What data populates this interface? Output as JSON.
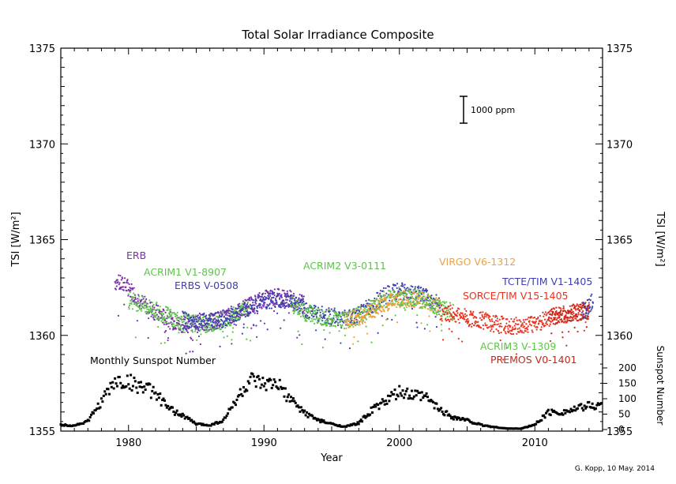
{
  "chart_data": {
    "type": "scatter",
    "title": "Total Solar Irradiance Composite",
    "xlabel": "Year",
    "ylabel_left": "TSI [W/m²]",
    "ylabel_right": "TSI [W/m²]",
    "ylabel_sunspot": "Sunspot Number",
    "xlim": [
      1975,
      2015
    ],
    "ylim": [
      1355,
      1375
    ],
    "x_ticks": [
      1980,
      1990,
      2000,
      2010
    ],
    "y_ticks": [
      1355,
      1360,
      1365,
      1370,
      1375
    ],
    "sunspot_axis": {
      "ticks": [
        0,
        50,
        100,
        150,
        200
      ],
      "range": [
        0,
        200
      ]
    },
    "scale_bar_label": "1000 ppm",
    "credit": "G. Kopp, 10 May. 2014",
    "grid": false,
    "series": [
      {
        "name": "ERB",
        "color": "#7b2fa8",
        "x": [
          1979.0,
          1980.0,
          1981.0,
          1982.0,
          1983.0,
          1984.0,
          1985.0,
          1986.0,
          1987.0,
          1988.0,
          1989.0,
          1990.0,
          1991.0,
          1992.0,
          1993.0
        ],
        "y": [
          1362.8,
          1362.5,
          1361.7,
          1361.2,
          1360.8,
          1360.6,
          1360.6,
          1360.7,
          1360.9,
          1361.2,
          1361.6,
          1361.9,
          1362.0,
          1361.9,
          1361.6
        ]
      },
      {
        "name": "ACRIM1 V1-8907",
        "color": "#5fc44a",
        "x": [
          1980.0,
          1981.0,
          1982.0,
          1983.0,
          1984.0,
          1985.0,
          1986.0,
          1987.0,
          1988.0,
          1989.0
        ],
        "y": [
          1361.9,
          1361.6,
          1361.3,
          1361.0,
          1360.7,
          1360.6,
          1360.6,
          1360.8,
          1361.1,
          1361.5
        ]
      },
      {
        "name": "ERBS V-0508",
        "color": "#3f3fb0",
        "x": [
          1984.0,
          1985.0,
          1986.0,
          1987.0,
          1988.0,
          1989.0,
          1990.0,
          1991.0,
          1992.0,
          1993.0,
          1994.0,
          1995.0,
          1996.0,
          1997.0,
          1998.0,
          1999.0,
          2000.0,
          2001.0,
          2002.0,
          2003.0
        ],
        "y": [
          1360.8,
          1360.7,
          1360.7,
          1360.8,
          1361.1,
          1361.5,
          1361.8,
          1361.9,
          1361.8,
          1361.4,
          1361.1,
          1361.0,
          1360.9,
          1361.1,
          1361.6,
          1362.1,
          1362.3,
          1362.2,
          1362.0,
          1361.6
        ]
      },
      {
        "name": "ACRIM2 V3-0111",
        "color": "#5fc44a",
        "x": [
          1992.0,
          1993.0,
          1994.0,
          1995.0,
          1996.0,
          1997.0,
          1998.0,
          1999.0,
          2000.0
        ],
        "y": [
          1361.6,
          1361.2,
          1361.0,
          1360.9,
          1360.8,
          1361.0,
          1361.5,
          1361.9,
          1362.1
        ]
      },
      {
        "name": "VIRGO V6-1312",
        "color": "#f2a03d",
        "x": [
          1996.0,
          1997.0,
          1998.0,
          1999.0,
          2000.0,
          2001.0,
          2002.0,
          2003.0
        ],
        "y": [
          1360.8,
          1360.9,
          1361.3,
          1361.7,
          1361.9,
          1361.9,
          1361.8,
          1361.4
        ]
      },
      {
        "name": "ACRIM3 V-1309",
        "color": "#5fc44a",
        "x": [
          2000.0,
          2001.0,
          2002.0,
          2003.0,
          2004.0
        ],
        "y": [
          1362.0,
          1362.0,
          1361.8,
          1361.4,
          1361.2
        ]
      },
      {
        "name": "SORCE/TIM V15-1405",
        "color": "#e8321e",
        "x": [
          2003.0,
          2004.0,
          2005.0,
          2006.0,
          2007.0,
          2008.0,
          2009.0,
          2010.0,
          2011.0,
          2012.0,
          2013.0,
          2014.0
        ],
        "y": [
          1361.2,
          1361.1,
          1360.9,
          1360.8,
          1360.6,
          1360.5,
          1360.5,
          1360.6,
          1360.9,
          1361.1,
          1361.2,
          1361.3
        ]
      },
      {
        "name": "PREMOS V0-1401",
        "color": "#c0281c",
        "x": [
          2011.0,
          2012.0,
          2013.0,
          2014.0
        ],
        "y": [
          1360.9,
          1361.1,
          1361.2,
          1361.3
        ]
      },
      {
        "name": "TCTE/TIM V1-1405",
        "color": "#3f3fb0",
        "x": [
          2013.5,
          2014.0,
          2014.3
        ],
        "y": [
          1361.3,
          1361.5,
          1361.8
        ]
      },
      {
        "name": "Monthly Sunspot Number",
        "color": "#000000",
        "axis": "sunspot",
        "x": [
          1975.0,
          1976.0,
          1977.0,
          1978.0,
          1979.0,
          1980.0,
          1981.0,
          1982.0,
          1983.0,
          1984.0,
          1985.0,
          1986.0,
          1987.0,
          1988.0,
          1989.0,
          1990.0,
          1991.0,
          1992.0,
          1993.0,
          1994.0,
          1995.0,
          1996.0,
          1997.0,
          1998.0,
          1999.0,
          2000.0,
          2001.0,
          2002.0,
          2003.0,
          2004.0,
          2005.0,
          2006.0,
          2007.0,
          2008.0,
          2009.0,
          2010.0,
          2011.0,
          2012.0,
          2013.0,
          2014.0
        ],
        "y": [
          15,
          13,
          27,
          92,
          155,
          154,
          140,
          116,
          66,
          46,
          18,
          14,
          29,
          100,
          158,
          142,
          146,
          94,
          55,
          30,
          18,
          9,
          21,
          64,
          93,
          120,
          111,
          104,
          64,
          40,
          30,
          15,
          8,
          3,
          3,
          16,
          56,
          57,
          65,
          78
        ]
      }
    ],
    "text_labels": [
      {
        "text": "ERB",
        "color": "#7b2fa8"
      },
      {
        "text": "ACRIM1 V1-8907",
        "color": "#5fc44a"
      },
      {
        "text": "ERBS V-0508",
        "color": "#3f3fb0"
      },
      {
        "text": "ACRIM2 V3-0111",
        "color": "#5fc44a"
      },
      {
        "text": "VIRGO V6-1312",
        "color": "#f2a03d"
      },
      {
        "text": "TCTE/TIM V1-1405",
        "color": "#3f3fb0"
      },
      {
        "text": "SORCE/TIM V15-1405",
        "color": "#e8321e"
      },
      {
        "text": "ACRIM3 V-1309",
        "color": "#5fc44a"
      },
      {
        "text": "PREMOS V0-1401",
        "color": "#c0281c"
      },
      {
        "text": "Monthly Sunspot Number",
        "color": "#000000"
      }
    ]
  }
}
